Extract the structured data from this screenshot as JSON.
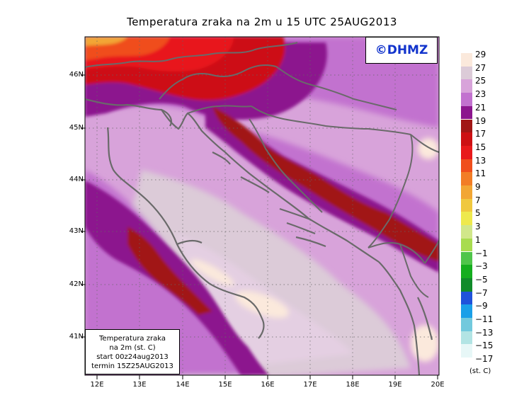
{
  "title": "Temperatura zraka na 2m u 15 UTC 25AUG2013",
  "logo": "©DHMZ",
  "info_box": {
    "line1": "Temperatura zraka",
    "line2": "na 2m (st. C)",
    "line3": "start 00z24aug2013",
    "line4": "termin 15Z25AUG2013"
  },
  "lat_labels": [
    "46N",
    "45N",
    "44N",
    "43N",
    "42N",
    "41N"
  ],
  "lon_labels": [
    "12E",
    "13E",
    "14E",
    "15E",
    "16E",
    "17E",
    "18E",
    "19E",
    "20E"
  ],
  "legend": {
    "units": "(st. C)",
    "labels": [
      "29",
      "27",
      "25",
      "23",
      "21",
      "19",
      "17",
      "15",
      "13",
      "11",
      "9",
      "7",
      "5",
      "3",
      "1",
      "−1",
      "−3",
      "−5",
      "−7",
      "−9",
      "−11",
      "−13",
      "−15",
      "−17"
    ],
    "colors": [
      "#fbe9dc",
      "#dccbd8",
      "#d8a3da",
      "#c272cf",
      "#8c168e",
      "#a11716",
      "#cd1013",
      "#e8191b",
      "#f04e1c",
      "#f27d26",
      "#f2a634",
      "#f0c83f",
      "#eee94d",
      "#d1e78a",
      "#a8dc4f",
      "#4fc54a",
      "#15ae1e",
      "#118b2a",
      "#1f52db",
      "#1a9fe8",
      "#72c9dd",
      "#b2e4e4",
      "#e7f7f7"
    ]
  }
}
